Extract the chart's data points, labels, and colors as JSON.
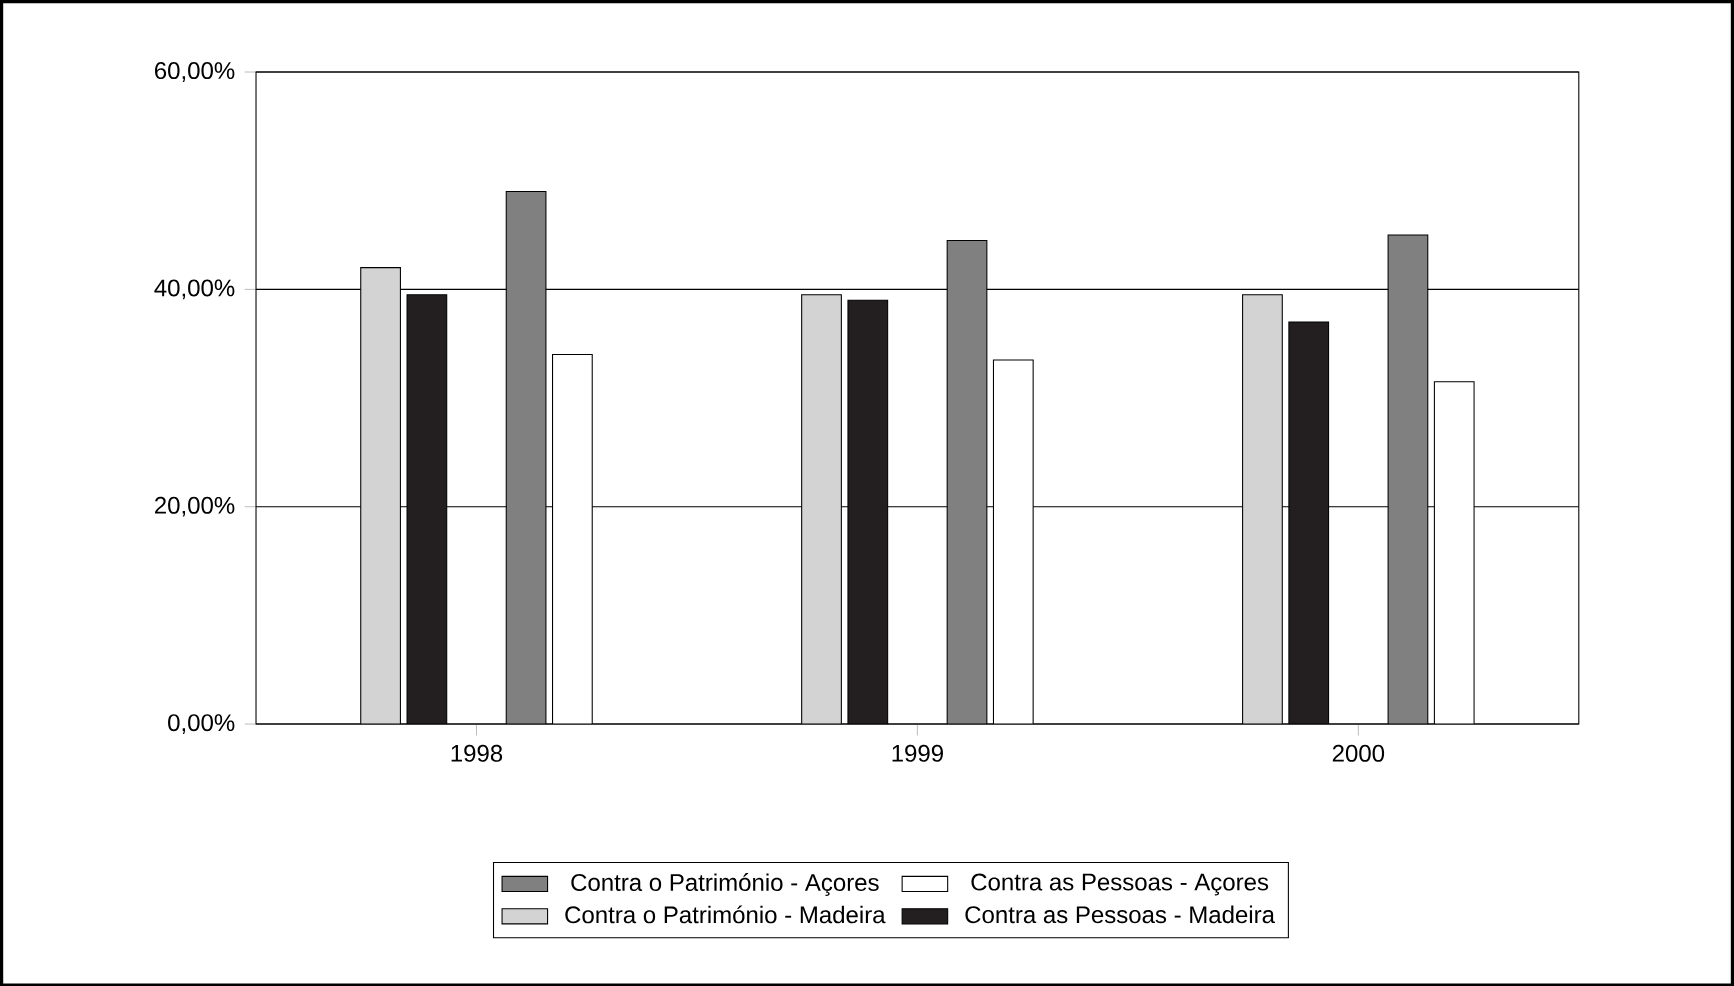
{
  "chart_data": {
    "type": "bar",
    "categories": [
      "1998",
      "1999",
      "2000"
    ],
    "series": [
      {
        "name": "Contra o Património - Açores",
        "color": "#808080",
        "values": [
          49,
          44.5,
          45
        ]
      },
      {
        "name": "Contra as Pessoas - Açores",
        "color": "#ffffff",
        "values": [
          34,
          33.5,
          31.5
        ]
      },
      {
        "name": "Contra o Património - Madeira",
        "color": "#d3d3d3",
        "values": [
          42,
          39.5,
          39.5
        ]
      },
      {
        "name": "Contra as Pessoas - Madeira",
        "color": "#231f20",
        "values": [
          39.5,
          39,
          37
        ]
      }
    ],
    "ylim": [
      0,
      60
    ],
    "yticks": [
      {
        "value": 0,
        "label": "0,00%"
      },
      {
        "value": 20,
        "label": "20,00%"
      },
      {
        "value": 40,
        "label": "40,00%"
      },
      {
        "value": 60,
        "label": "60,00%"
      }
    ],
    "grid": "y",
    "legend": "bottom"
  }
}
